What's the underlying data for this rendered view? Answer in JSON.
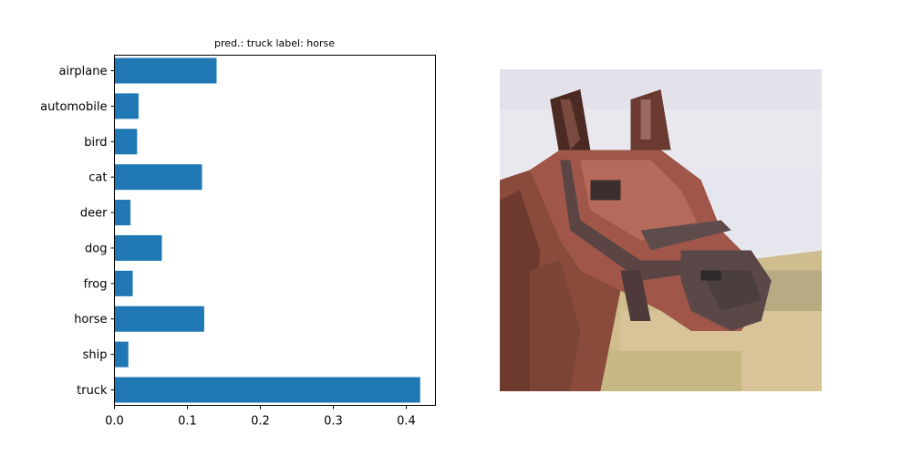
{
  "chart_data": {
    "type": "bar",
    "orientation": "horizontal",
    "title": "pred.: truck   label: horse",
    "categories": [
      "airplane",
      "automobile",
      "bird",
      "cat",
      "deer",
      "dog",
      "frog",
      "horse",
      "ship",
      "truck"
    ],
    "values": [
      0.14,
      0.033,
      0.031,
      0.12,
      0.022,
      0.065,
      0.025,
      0.123,
      0.019,
      0.419
    ],
    "xlim": [
      0,
      0.44
    ],
    "xticks": [
      "0.0",
      "0.1",
      "0.2",
      "0.3",
      "0.4"
    ],
    "xtick_values": [
      0.0,
      0.1,
      0.2,
      0.3,
      0.4
    ],
    "xlabel": "",
    "ylabel": "",
    "bar_color": "#1f77b4",
    "grid": false,
    "legend": "none"
  },
  "image_panel": {
    "subject": "pixelated horse head photo"
  }
}
